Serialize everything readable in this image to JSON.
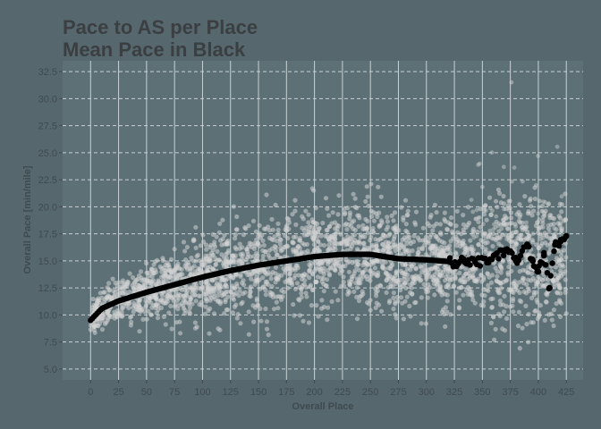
{
  "chart_data": {
    "type": "scatter",
    "title": "Pace to AS per Place",
    "subtitle": "Mean Pace in Black",
    "xlabel": "Overall Place",
    "ylabel": "Overall Pace [min/mile]",
    "xlim": [
      -25,
      440
    ],
    "ylim": [
      4,
      33.5
    ],
    "x_ticks": [
      "0",
      "25",
      "50",
      "75",
      "100",
      "125",
      "150",
      "175",
      "200",
      "225",
      "250",
      "275",
      "300",
      "325",
      "350",
      "375",
      "400",
      "425"
    ],
    "y_ticks": [
      "5.0",
      "7.5",
      "10.0",
      "12.5",
      "15.0",
      "17.5",
      "20.0",
      "22.5",
      "25.0",
      "27.5",
      "30.0",
      "32.5"
    ],
    "grid": true,
    "legend": "none",
    "colors": {
      "background": "#56686e",
      "panel": "#5c7076",
      "grid": "#c9d1d3",
      "points": "#d2d2d2",
      "mean": "#000000"
    },
    "series": [
      {
        "role": "individual paces",
        "color": "#d2d2d2",
        "x_range": [
          0,
          425
        ],
        "typical_lower": [
          9.5,
          8.0,
          8.0
        ],
        "typical_upper": [
          12.0,
          17.0,
          18.5
        ],
        "max_y": 31.5
      },
      {
        "role": "mean pace",
        "color": "#000000",
        "x": [
          0,
          10,
          25,
          50,
          75,
          100,
          125,
          150,
          175,
          200,
          225,
          250,
          275,
          300,
          325,
          340,
          350,
          360,
          370,
          380,
          390,
          395,
          400,
          405,
          410,
          415,
          420,
          425
        ],
        "y": [
          9.5,
          10.6,
          11.3,
          12.1,
          12.8,
          13.5,
          14.1,
          14.6,
          15.0,
          15.4,
          15.6,
          15.6,
          15.2,
          15.1,
          14.9,
          14.9,
          15.0,
          15.1,
          16.0,
          15.0,
          16.5,
          15.0,
          14.0,
          15.5,
          12.5,
          16.5,
          16.8,
          17.3
        ]
      }
    ]
  }
}
